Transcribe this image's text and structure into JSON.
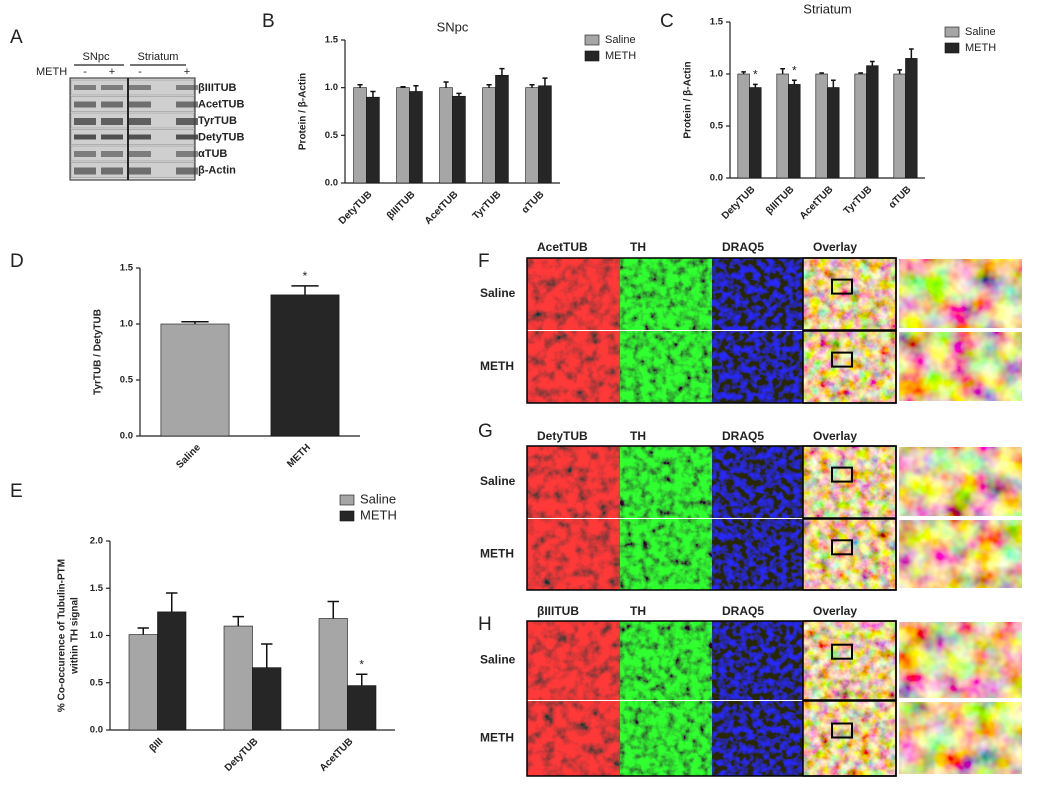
{
  "panel_labels": [
    "A",
    "B",
    "C",
    "D",
    "E",
    "F",
    "G",
    "H"
  ],
  "blot": {
    "groups": [
      "SNpc",
      "Striatum"
    ],
    "treatment_label": "METH",
    "signs": [
      "-",
      "+",
      "-",
      "+"
    ],
    "bands": [
      "βIIITUB",
      "AcetTUB",
      "TyrTUB",
      "DetyTUB",
      "αTUB",
      "β-Actin"
    ]
  },
  "chart_data": [
    {
      "type": "bar",
      "title": "SNpc",
      "ylabel": "Protein / β-Actin",
      "categories": [
        "DetyTUB",
        "βIIITUB",
        "AcetTUB",
        "TyrTUB",
        "αTUB"
      ],
      "series": [
        {
          "name": "Saline",
          "color": "#a6a6a6",
          "values": [
            1.0,
            1.0,
            1.0,
            1.0,
            1.0
          ],
          "errors": [
            0.03,
            0.01,
            0.06,
            0.03,
            0.03
          ]
        },
        {
          "name": "METH",
          "color": "#262626",
          "values": [
            0.9,
            0.96,
            0.91,
            1.13,
            1.02
          ],
          "errors": [
            0.06,
            0.06,
            0.03,
            0.07,
            0.08
          ]
        }
      ],
      "ylim": [
        0,
        1.5
      ],
      "yticks": [
        {
          "value": 0,
          "label": "0.0"
        },
        {
          "value": 0.5,
          "label": "0.5"
        },
        {
          "value": 1,
          "label": "1.0"
        },
        {
          "value": 1.5,
          "label": "1.5"
        }
      ],
      "legend": "outside right"
    },
    {
      "type": "bar",
      "title": "Striatum",
      "ylabel": "Protein / β-Actin",
      "categories": [
        "DetyTUB",
        "βIIITUB",
        "AcetTUB",
        "TyrTUB",
        "αTUB"
      ],
      "series": [
        {
          "name": "Saline",
          "color": "#a6a6a6",
          "values": [
            1.0,
            1.0,
            1.0,
            1.0,
            1.0
          ],
          "errors": [
            0.02,
            0.05,
            0.01,
            0.01,
            0.04
          ]
        },
        {
          "name": "METH",
          "color": "#262626",
          "values": [
            0.87,
            0.9,
            0.87,
            1.08,
            1.15
          ],
          "errors": [
            0.03,
            0.04,
            0.07,
            0.04,
            0.09
          ],
          "markers": [
            "*",
            "*",
            null,
            null,
            null
          ]
        }
      ],
      "ylim": [
        0,
        1.5
      ],
      "yticks": [
        {
          "value": 0,
          "label": "0.0"
        },
        {
          "value": 0.5,
          "label": "0.5"
        },
        {
          "value": 1,
          "label": "1.0"
        },
        {
          "value": 1.5,
          "label": "1.5"
        }
      ],
      "legend": "outside right"
    },
    {
      "type": "bar",
      "ylabel": "TyrTUB / DetyTUB",
      "categories": [
        "Saline",
        "METH"
      ],
      "values": [
        1.0,
        1.26
      ],
      "errors": [
        0.02,
        0.08
      ],
      "markers": [
        null,
        "*"
      ],
      "colors": [
        "#a6a6a6",
        "#262626"
      ],
      "ylim": [
        0,
        1.5
      ],
      "yticks": [
        {
          "value": 0,
          "label": "0.0"
        },
        {
          "value": 0.5,
          "label": "0.5"
        },
        {
          "value": 1,
          "label": "1.0"
        },
        {
          "value": 1.5,
          "label": "1.5"
        }
      ]
    },
    {
      "type": "bar",
      "ylabel": [
        "% Co-occurence of Tubulin-PTM",
        "within TH signal"
      ],
      "categories": [
        "βIII",
        "DetyTUB",
        "AcetTUB"
      ],
      "series": [
        {
          "name": "Saline",
          "color": "#a6a6a6",
          "values": [
            1.01,
            1.1,
            1.18
          ],
          "errors": [
            0.07,
            0.1,
            0.18
          ]
        },
        {
          "name": "METH",
          "color": "#262626",
          "values": [
            1.25,
            0.66,
            0.47
          ],
          "errors": [
            0.2,
            0.25,
            0.12
          ],
          "markers": [
            null,
            null,
            "*"
          ]
        }
      ],
      "ylim": [
        0,
        2
      ],
      "yticks": [
        {
          "value": 0,
          "label": "0.0"
        },
        {
          "value": 0.5,
          "label": "0.5"
        },
        {
          "value": 1,
          "label": "1.0"
        },
        {
          "value": 1.5,
          "label": "1.5"
        },
        {
          "value": 2,
          "label": "2.0"
        }
      ],
      "legend": "upper right"
    }
  ],
  "micrographs": [
    {
      "columns": [
        "AcetTUB",
        "TH",
        "DRAQ5",
        "Overlay"
      ],
      "rows": [
        "Saline",
        "METH"
      ]
    },
    {
      "columns": [
        "DetyTUB",
        "TH",
        "DRAQ5",
        "Overlay"
      ],
      "rows": [
        "Saline",
        "METH"
      ]
    },
    {
      "columns": [
        "βIIITUB",
        "TH",
        "DRAQ5",
        "Overlay"
      ],
      "rows": [
        "Saline",
        "METH"
      ]
    }
  ]
}
